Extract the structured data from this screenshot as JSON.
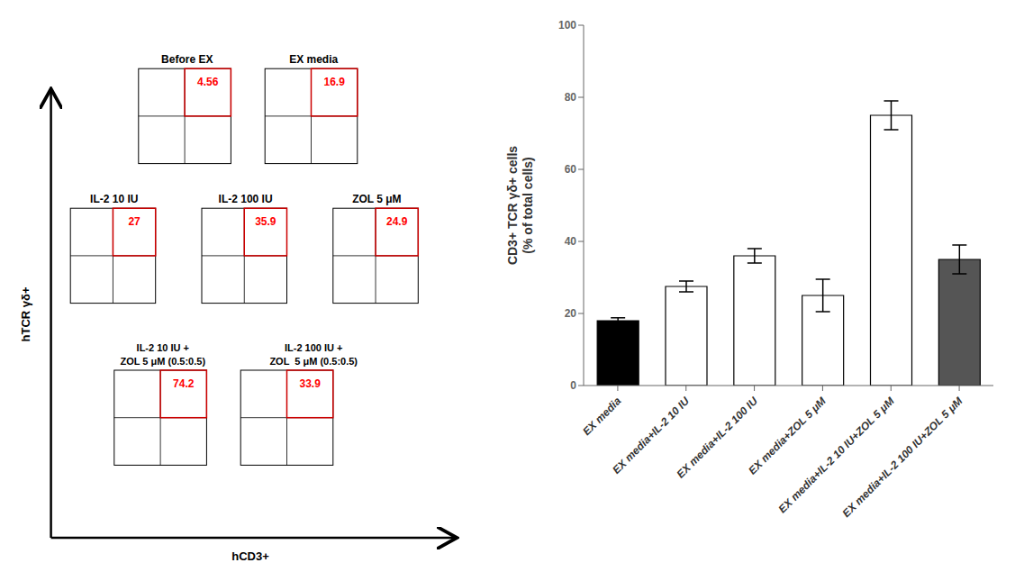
{
  "chart_data": {
    "type": "bar",
    "categories": [
      "EX media",
      "EX media+IL-2 10 IU",
      "EX media+IL-2 100 IU",
      "EX media+ZOL 5 μM",
      "EX media+IL-2 10 IU+ZOL 5 μM",
      "EX media+IL-2 100 IU+ZOL 5 μM"
    ],
    "values": [
      18.0,
      27.5,
      36.0,
      25.0,
      75.0,
      35.0
    ],
    "errors": [
      0.8,
      1.5,
      2.0,
      4.5,
      4.0,
      4.0
    ],
    "ylabel": "CD3+ TCR γδ+ cells\n(% of total cells)",
    "ylim": [
      0,
      100
    ],
    "yticks": [
      0,
      20,
      40,
      60,
      80,
      100
    ],
    "colors": [
      "#000000",
      "#ffffff",
      "#ffffff",
      "#ffffff",
      "#ffffff",
      "#555555"
    ],
    "annotations": [
      "hTCR γδ+",
      "hCD3+",
      "Before EX",
      "4.56",
      "EX media",
      "16.9",
      "IL-2 10 IU",
      "27",
      "IL-2 100 IU",
      "35.9",
      "ZOL 5 μM",
      "24.9",
      "IL-2 10 IU +\nZOL 5 μM (0.5:0.5)",
      "74.2",
      "IL-2 100 IU +\nZOL  5 μM (0.5:0.5)",
      "33.9"
    ]
  }
}
